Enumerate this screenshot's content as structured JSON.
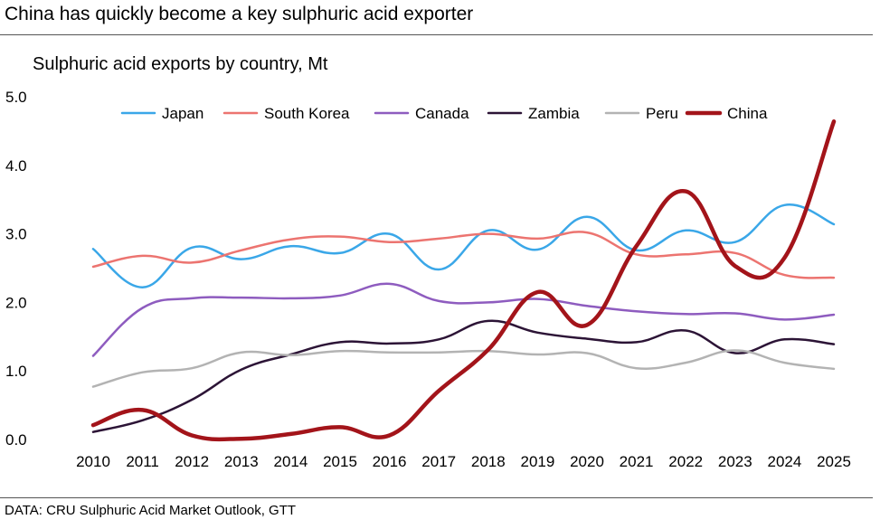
{
  "header": {
    "title": "China has quickly become a key sulphuric acid exporter"
  },
  "footer": {
    "source": "DATA: CRU Sulphuric Acid Market Outlook, GTT"
  },
  "chart_data": {
    "type": "line",
    "title": "Sulphuric acid exports by country, Mt",
    "xlabel": "",
    "ylabel": "",
    "ylim": [
      0,
      5
    ],
    "yticks": [
      "0.0",
      "1.0",
      "2.0",
      "3.0",
      "4.0",
      "5.0"
    ],
    "categories": [
      "2010",
      "2011",
      "2012",
      "2013",
      "2014",
      "2015",
      "2016",
      "2017",
      "2018",
      "2019",
      "2020",
      "2021",
      "2022",
      "2023",
      "2024",
      "2025"
    ],
    "grid": false,
    "legend_position": "top",
    "series": [
      {
        "name": "Japan",
        "color": "#3aa7e8",
        "width": 2.5,
        "values": [
          2.78,
          2.22,
          2.8,
          2.63,
          2.82,
          2.72,
          3.0,
          2.48,
          3.05,
          2.77,
          3.25,
          2.76,
          3.05,
          2.88,
          3.42,
          3.14
        ]
      },
      {
        "name": "South Korea",
        "color": "#ec7470",
        "width": 2.5,
        "values": [
          2.52,
          2.68,
          2.58,
          2.76,
          2.92,
          2.96,
          2.88,
          2.93,
          3.0,
          2.93,
          3.02,
          2.7,
          2.7,
          2.72,
          2.4,
          2.36
        ]
      },
      {
        "name": "Canada",
        "color": "#8e5cbf",
        "width": 2.5,
        "values": [
          1.22,
          1.92,
          2.06,
          2.07,
          2.06,
          2.1,
          2.27,
          2.02,
          2.0,
          2.05,
          1.95,
          1.87,
          1.83,
          1.84,
          1.75,
          1.82
        ]
      },
      {
        "name": "Zambia",
        "color": "#2c1436",
        "width": 2.5,
        "values": [
          0.11,
          0.28,
          0.58,
          1.02,
          1.24,
          1.42,
          1.4,
          1.46,
          1.73,
          1.56,
          1.47,
          1.42,
          1.59,
          1.26,
          1.46,
          1.39
        ]
      },
      {
        "name": "Peru",
        "color": "#b3b3b3",
        "width": 2.5,
        "values": [
          0.77,
          0.98,
          1.04,
          1.27,
          1.23,
          1.29,
          1.27,
          1.27,
          1.29,
          1.24,
          1.26,
          1.04,
          1.12,
          1.3,
          1.12,
          1.03
        ]
      },
      {
        "name": "China",
        "color": "#a3141a",
        "width": 4.5,
        "values": [
          0.21,
          0.43,
          0.06,
          0.01,
          0.08,
          0.18,
          0.06,
          0.71,
          1.31,
          2.15,
          1.67,
          2.82,
          3.62,
          2.53,
          2.65,
          4.64
        ]
      }
    ]
  }
}
